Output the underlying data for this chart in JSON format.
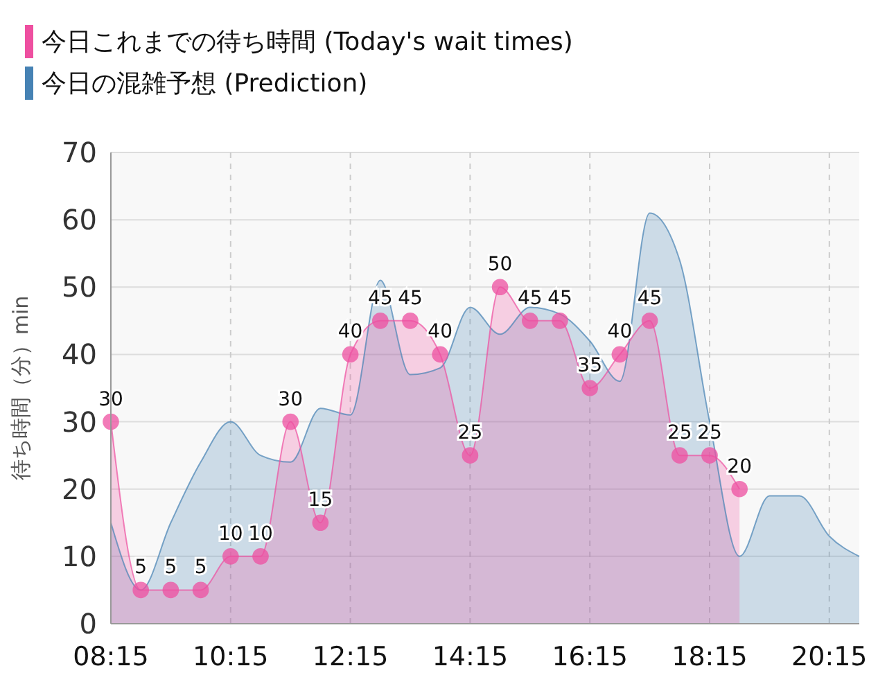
{
  "chart_data": {
    "type": "area",
    "ylabel": "待ち時間（分）min",
    "xlim": [
      8.25,
      20.75
    ],
    "ylim": [
      0,
      70
    ],
    "yticks": [
      0,
      10,
      20,
      30,
      40,
      50,
      60,
      70
    ],
    "xticks": [
      {
        "value": 8.25,
        "label": "08:15"
      },
      {
        "value": 10.25,
        "label": "10:15"
      },
      {
        "value": 12.25,
        "label": "12:15"
      },
      {
        "value": 14.25,
        "label": "14:15"
      },
      {
        "value": 16.25,
        "label": "16:15"
      },
      {
        "value": 18.25,
        "label": "18:15"
      },
      {
        "value": 20.25,
        "label": "20:15"
      }
    ],
    "grid": true,
    "legend": "top left",
    "series": [
      {
        "name": "今日の混雑予想 (Prediction)",
        "color": "#4682b4",
        "x": [
          8.25,
          8.75,
          9.25,
          9.75,
          10.25,
          10.75,
          11.25,
          11.75,
          12.25,
          12.75,
          13.25,
          13.75,
          14.25,
          14.75,
          15.25,
          15.75,
          16.25,
          16.75,
          17.25,
          17.75,
          18.25,
          18.75,
          19.25,
          19.75,
          20.25,
          20.75
        ],
        "values": [
          15,
          5,
          15,
          24,
          30,
          25,
          24,
          32,
          31,
          51,
          37,
          38,
          47,
          43,
          47,
          46,
          42,
          36,
          61,
          54,
          30,
          10,
          19,
          19,
          13,
          10
        ]
      },
      {
        "name": "今日これまでの待ち時間 (Today's wait times)",
        "color": "#ee4fa0",
        "marker": "circle",
        "data_labels": true,
        "x": [
          8.25,
          8.75,
          9.25,
          9.75,
          10.25,
          10.75,
          11.25,
          11.75,
          12.25,
          12.75,
          13.25,
          13.75,
          14.25,
          14.75,
          15.25,
          15.75,
          16.25,
          16.75,
          17.25,
          17.75,
          18.25,
          18.75
        ],
        "values": [
          30,
          5,
          5,
          5,
          10,
          10,
          30,
          15,
          40,
          45,
          45,
          40,
          25,
          50,
          45,
          45,
          35,
          40,
          45,
          25,
          25,
          20
        ]
      }
    ]
  }
}
